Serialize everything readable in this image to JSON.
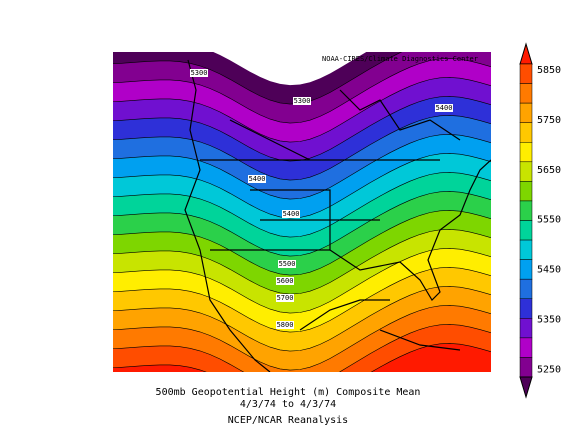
{
  "source": "NOAA-CIRES/Climate Diagnostics Center",
  "contour_labels": [
    5300,
    5300,
    5400,
    5400,
    5400,
    5500,
    5600,
    5700,
    5800
  ],
  "colorbar": {
    "ticks": [
      5850,
      5750,
      5650,
      5550,
      5450,
      5350,
      5250
    ],
    "colors": [
      "#ff1a00",
      "#ff4d00",
      "#ff7a00",
      "#ffa300",
      "#ffc800",
      "#ffee00",
      "#c8e400",
      "#7ed600",
      "#2bd04a",
      "#00d49a",
      "#00c8d8",
      "#00a0f0",
      "#1f6fe0",
      "#2e30d8",
      "#7010d0",
      "#b000c8",
      "#820090",
      "#4e0058"
    ]
  },
  "caption": [
    "500mb Geopotential Height (m) Composite Mean",
    "4/3/74  to 4/3/74",
    "NCEP/NCAR Reanalysis"
  ]
}
